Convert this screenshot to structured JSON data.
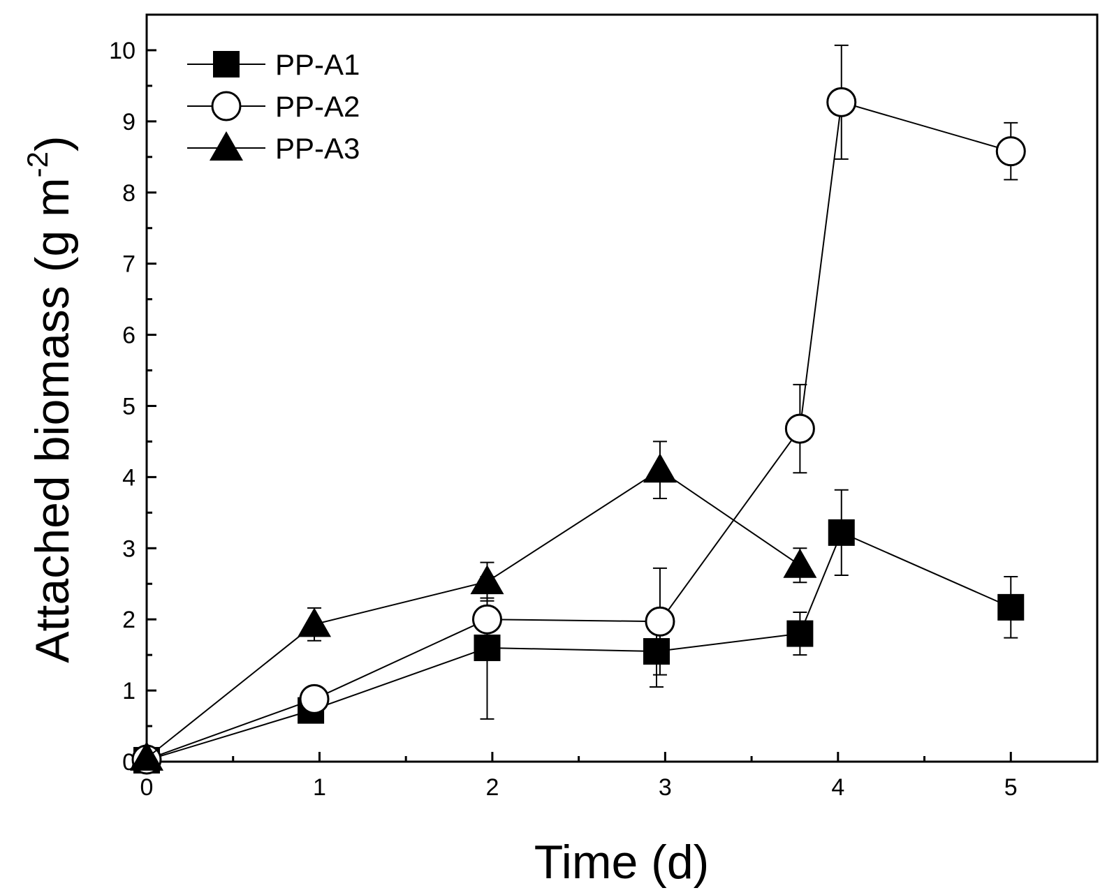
{
  "chart_data": {
    "type": "line",
    "title": "",
    "xlabel": "Time (d)",
    "ylabel": "Attached biomass (g m",
    "ylabel_superscript": "-2",
    "ylabel_close": ")",
    "xlim": [
      0,
      5.5
    ],
    "ylim": [
      0,
      10.5
    ],
    "xticks": [
      0,
      1,
      2,
      3,
      4,
      5
    ],
    "xtick_labels": [
      "0",
      "1",
      "2",
      "3",
      "4",
      "5"
    ],
    "yticks": [
      0,
      1,
      2,
      3,
      4,
      5,
      6,
      7,
      8,
      9,
      10
    ],
    "ytick_labels": [
      "0",
      "1",
      "2",
      "3",
      "4",
      "5",
      "6",
      "7",
      "8",
      "9",
      "10"
    ],
    "grid": false,
    "legend_position": "top-left",
    "series": [
      {
        "name": "PP-A1",
        "marker": "square-filled",
        "x": [
          0,
          0.95,
          1.97,
          2.95,
          3.78,
          4.02,
          5.0
        ],
        "y": [
          0.02,
          0.72,
          1.6,
          1.55,
          1.8,
          3.22,
          2.17
        ],
        "err": [
          0,
          0.05,
          1.0,
          0.5,
          0.3,
          0.6,
          0.43
        ]
      },
      {
        "name": "PP-A2",
        "marker": "circle-open",
        "x": [
          0,
          0.97,
          1.97,
          2.97,
          3.78,
          4.02,
          5.0
        ],
        "y": [
          0.03,
          0.88,
          2.0,
          1.97,
          4.68,
          9.27,
          8.58
        ],
        "err": [
          0,
          0.07,
          0.3,
          0.75,
          0.62,
          0.8,
          0.4
        ]
      },
      {
        "name": "PP-A3",
        "marker": "triangle-filled",
        "x": [
          0,
          0.97,
          1.97,
          2.97,
          3.78
        ],
        "y": [
          0.05,
          1.93,
          2.53,
          4.1,
          2.76
        ],
        "err": [
          0,
          0.23,
          0.27,
          0.4,
          0.24
        ]
      }
    ]
  }
}
